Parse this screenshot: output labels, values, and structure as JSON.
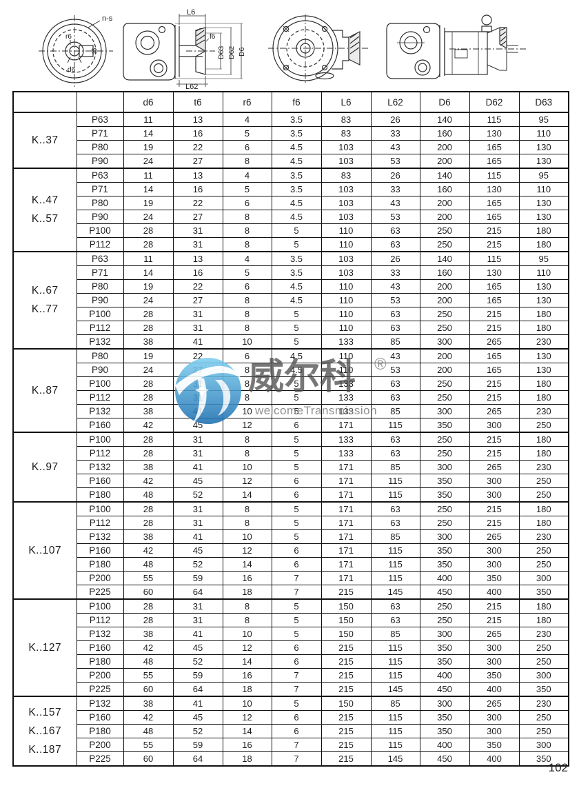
{
  "page": {
    "number": "102"
  },
  "drawings": {
    "end_view": {
      "bolt_pattern": "n-s",
      "r6": "r6",
      "t6": "t6",
      "d6": "d6"
    },
    "side_view": {
      "L6": "L6",
      "f6": "f6",
      "D63": "D63",
      "D62": "D62",
      "D6": "D6",
      "L62": "L62"
    }
  },
  "watermark": {
    "logo_text": "威尔科",
    "registered": "®",
    "subtitle": "welcomeTransmission",
    "blue_light": "#7fd0f2",
    "blue_dark": "#1c6fb0"
  },
  "table": {
    "headers": [
      "",
      "",
      "d6",
      "t6",
      "r6",
      "f6",
      "L6",
      "L62",
      "D6",
      "D62",
      "D63"
    ],
    "groups": [
      {
        "label": [
          "K..37"
        ],
        "rows": [
          [
            "P63",
            11,
            13,
            4,
            3.5,
            83,
            26,
            140,
            115,
            95
          ],
          [
            "P71",
            14,
            16,
            5,
            3.5,
            83,
            33,
            160,
            130,
            110
          ],
          [
            "P80",
            19,
            22,
            6,
            4.5,
            103,
            43,
            200,
            165,
            130
          ],
          [
            "P90",
            24,
            27,
            8,
            4.5,
            103,
            53,
            200,
            165,
            130
          ]
        ]
      },
      {
        "label": [
          "K..47",
          "K..57"
        ],
        "rows": [
          [
            "P63",
            11,
            13,
            4,
            3.5,
            83,
            26,
            140,
            115,
            95
          ],
          [
            "P71",
            14,
            16,
            5,
            3.5,
            103,
            33,
            160,
            130,
            110
          ],
          [
            "P80",
            19,
            22,
            6,
            4.5,
            103,
            43,
            200,
            165,
            130
          ],
          [
            "P90",
            24,
            27,
            8,
            4.5,
            103,
            53,
            200,
            165,
            130
          ],
          [
            "P100",
            28,
            31,
            8,
            5,
            110,
            63,
            250,
            215,
            180
          ],
          [
            "P112",
            28,
            31,
            8,
            5,
            110,
            63,
            250,
            215,
            180
          ]
        ]
      },
      {
        "label": [
          "K..67",
          "K..77"
        ],
        "rows": [
          [
            "P63",
            11,
            13,
            4,
            3.5,
            103,
            26,
            140,
            115,
            95
          ],
          [
            "P71",
            14,
            16,
            5,
            3.5,
            103,
            33,
            160,
            130,
            110
          ],
          [
            "P80",
            19,
            22,
            6,
            4.5,
            110,
            43,
            200,
            165,
            130
          ],
          [
            "P90",
            24,
            27,
            8,
            4.5,
            110,
            53,
            200,
            165,
            130
          ],
          [
            "P100",
            28,
            31,
            8,
            5,
            110,
            63,
            250,
            215,
            180
          ],
          [
            "P112",
            28,
            31,
            8,
            5,
            110,
            63,
            250,
            215,
            180
          ],
          [
            "P132",
            38,
            41,
            10,
            5,
            133,
            85,
            300,
            265,
            230
          ]
        ]
      },
      {
        "label": [
          "K..87"
        ],
        "rows": [
          [
            "P80",
            19,
            22,
            6,
            4.5,
            110,
            43,
            200,
            165,
            130
          ],
          [
            "P90",
            24,
            27,
            8,
            4.5,
            110,
            53,
            200,
            165,
            130
          ],
          [
            "P100",
            28,
            31,
            8,
            5,
            133,
            63,
            250,
            215,
            180
          ],
          [
            "P112",
            28,
            31,
            8,
            5,
            133,
            63,
            250,
            215,
            180
          ],
          [
            "P132",
            38,
            41,
            10,
            5,
            133,
            85,
            300,
            265,
            230
          ],
          [
            "P160",
            42,
            45,
            12,
            6,
            171,
            115,
            350,
            300,
            250
          ]
        ]
      },
      {
        "label": [
          "K..97"
        ],
        "rows": [
          [
            "P100",
            28,
            31,
            8,
            5,
            133,
            63,
            250,
            215,
            180
          ],
          [
            "P112",
            28,
            31,
            8,
            5,
            133,
            63,
            250,
            215,
            180
          ],
          [
            "P132",
            38,
            41,
            10,
            5,
            171,
            85,
            300,
            265,
            230
          ],
          [
            "P160",
            42,
            45,
            12,
            6,
            171,
            115,
            350,
            300,
            250
          ],
          [
            "P180",
            48,
            52,
            14,
            6,
            171,
            115,
            350,
            300,
            250
          ]
        ]
      },
      {
        "label": [
          "K..107"
        ],
        "rows": [
          [
            "P100",
            28,
            31,
            8,
            5,
            171,
            63,
            250,
            215,
            180
          ],
          [
            "P112",
            28,
            31,
            8,
            5,
            171,
            63,
            250,
            215,
            180
          ],
          [
            "P132",
            38,
            41,
            10,
            5,
            171,
            85,
            300,
            265,
            230
          ],
          [
            "P160",
            42,
            45,
            12,
            6,
            171,
            115,
            350,
            300,
            250
          ],
          [
            "P180",
            48,
            52,
            14,
            6,
            171,
            115,
            350,
            300,
            250
          ],
          [
            "P200",
            55,
            59,
            16,
            7,
            171,
            115,
            400,
            350,
            300
          ],
          [
            "P225",
            60,
            64,
            18,
            7,
            215,
            145,
            450,
            400,
            350
          ]
        ]
      },
      {
        "label": [
          "K..127"
        ],
        "rows": [
          [
            "P100",
            28,
            31,
            8,
            5,
            150,
            63,
            250,
            215,
            180
          ],
          [
            "P112",
            28,
            31,
            8,
            5,
            150,
            63,
            250,
            215,
            180
          ],
          [
            "P132",
            38,
            41,
            10,
            5,
            150,
            85,
            300,
            265,
            230
          ],
          [
            "P160",
            42,
            45,
            12,
            6,
            215,
            115,
            350,
            300,
            250
          ],
          [
            "P180",
            48,
            52,
            14,
            6,
            215,
            115,
            350,
            300,
            250
          ],
          [
            "P200",
            55,
            59,
            16,
            7,
            215,
            115,
            400,
            350,
            300
          ],
          [
            "P225",
            60,
            64,
            18,
            7,
            215,
            145,
            450,
            400,
            350
          ]
        ]
      },
      {
        "label": [
          "K..157",
          "K..167",
          "K..187"
        ],
        "rows": [
          [
            "P132",
            38,
            41,
            10,
            5,
            150,
            85,
            300,
            265,
            230
          ],
          [
            "P160",
            42,
            45,
            12,
            6,
            215,
            115,
            350,
            300,
            250
          ],
          [
            "P180",
            48,
            52,
            14,
            6,
            215,
            115,
            350,
            300,
            250
          ],
          [
            "P200",
            55,
            59,
            16,
            7,
            215,
            115,
            400,
            350,
            300
          ],
          [
            "P225",
            60,
            64,
            18,
            7,
            215,
            145,
            450,
            400,
            350
          ]
        ]
      }
    ]
  }
}
